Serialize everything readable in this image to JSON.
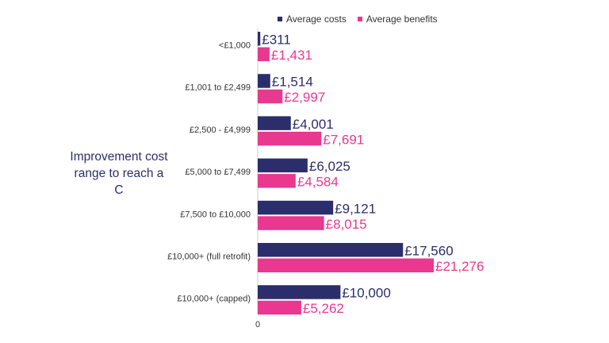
{
  "chart_data": {
    "type": "bar",
    "orientation": "horizontal",
    "ylabel": "Improvement cost range to reach a C",
    "xlabel": "",
    "categories": [
      "<£1,000",
      "£1,001 to £2,499",
      "£2,500 - £4,999",
      "£5,000 to £7,499",
      "£7,500 to £10,000",
      "£10,000+ (full retrofit)",
      "£10,000+ (capped)"
    ],
    "series": [
      {
        "name": "Average costs",
        "color": "#2b2e6b",
        "values": [
          311,
          1514,
          4001,
          6025,
          9121,
          17560,
          10000
        ],
        "labels": [
          "£311",
          "£1,514",
          "£4,001",
          "£6,025",
          "£9,121",
          "£17,560",
          "£10,000"
        ]
      },
      {
        "name": "Average benefits",
        "color": "#e8388f",
        "values": [
          1431,
          2997,
          7691,
          4584,
          8015,
          21276,
          5262
        ],
        "labels": [
          "£1,431",
          "£2,997",
          "£7,691",
          "£4,584",
          "£8,015",
          "£21,276",
          "£5,262"
        ]
      }
    ],
    "xlim": [
      0,
      21276
    ],
    "x_tick_labels": [
      "0"
    ],
    "legend_position": "top",
    "grid": false
  }
}
